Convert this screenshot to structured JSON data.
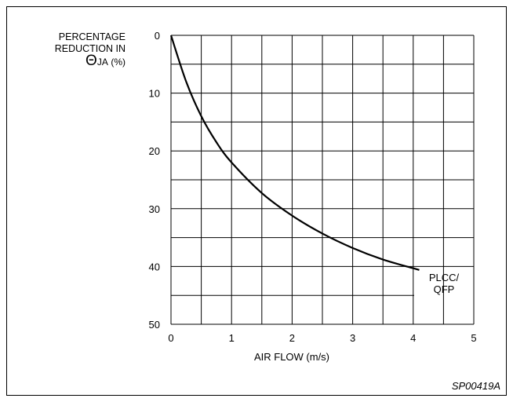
{
  "chart_data": {
    "type": "line",
    "ylabel_lines": [
      "PERCENTAGE",
      "REDUCTION IN"
    ],
    "ylabel_symbol": "Θ",
    "ylabel_subscript": "JA",
    "ylabel_unit": "(%)",
    "xlabel": "AIR FLOW (m/s)",
    "xlim": [
      0,
      5
    ],
    "ylim": [
      0,
      50
    ],
    "y_inverted": true,
    "x_ticks": [
      "0",
      "1",
      "2",
      "3",
      "4",
      "5"
    ],
    "y_ticks": [
      "0",
      "10",
      "20",
      "30",
      "40",
      "50"
    ],
    "grid": true,
    "series": [
      {
        "name": "PLCC/ QFP",
        "label_lines": [
          "PLCC/",
          "QFP"
        ],
        "x": [
          0,
          0.25,
          0.5,
          0.75,
          1.0,
          1.5,
          2.0,
          2.5,
          3.0,
          3.5,
          4.0,
          4.1
        ],
        "y": [
          0,
          8,
          14,
          18.5,
          22,
          27.3,
          31.2,
          34.3,
          36.8,
          38.8,
          40.3,
          40.6
        ]
      }
    ],
    "figure_code": "SP00419A"
  }
}
